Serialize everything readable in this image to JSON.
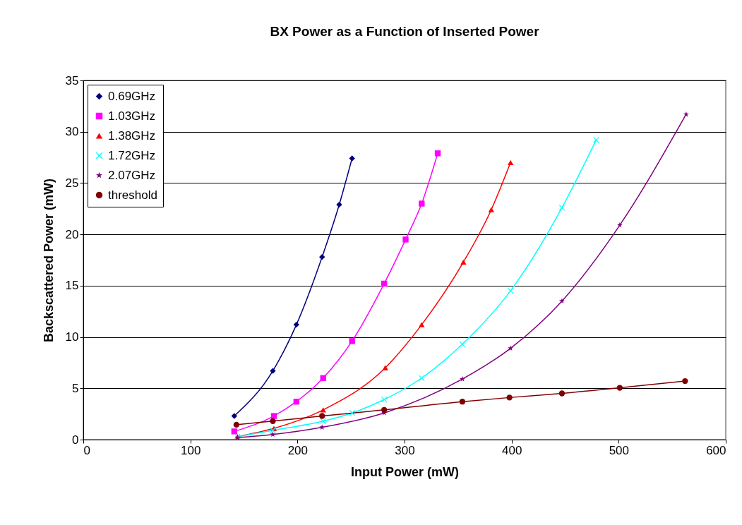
{
  "chart_data": {
    "type": "line",
    "title": "BX Power as a Function of Inserted Power",
    "xlabel": "Input Power (mW)",
    "ylabel": "Backscattered Power (mW)",
    "xlim": [
      0,
      600
    ],
    "xticks": [
      0,
      100,
      200,
      300,
      400,
      500,
      600
    ],
    "ylim": [
      0,
      35
    ],
    "yticks": [
      0,
      5,
      10,
      15,
      20,
      25,
      30,
      35
    ],
    "grid": "y",
    "legend": "top left",
    "line_style": "solid",
    "series": [
      {
        "name": "0.69GHz",
        "color": "#000080",
        "marker": "diamond",
        "x": [
          141,
          177,
          199,
          223,
          239,
          251
        ],
        "values": [
          2.3,
          6.7,
          11.2,
          17.8,
          22.9,
          27.4
        ]
      },
      {
        "name": "1.03GHz",
        "color": "#ff00ff",
        "marker": "square",
        "x": [
          141,
          178,
          199,
          224,
          251,
          281,
          301,
          316,
          331
        ],
        "values": [
          0.8,
          2.3,
          3.7,
          6.0,
          9.6,
          15.2,
          19.5,
          23.0,
          27.9
        ]
      },
      {
        "name": "1.38GHz",
        "color": "#ff0000",
        "marker": "triangle",
        "x": [
          144,
          178,
          224,
          282,
          316,
          355,
          381,
          399
        ],
        "values": [
          0.3,
          1.1,
          2.9,
          7.0,
          11.2,
          17.3,
          22.4,
          27.0
        ]
      },
      {
        "name": "1.72GHz",
        "color": "#00ffff",
        "marker": "cross",
        "x": [
          144,
          177,
          224,
          251,
          281,
          316,
          354,
          399,
          447,
          479
        ],
        "values": [
          0.3,
          0.9,
          1.8,
          2.6,
          3.9,
          6.0,
          9.3,
          14.5,
          22.6,
          29.2
        ]
      },
      {
        "name": "2.07GHz",
        "color": "#800080",
        "marker": "star",
        "x": [
          144,
          177,
          223,
          281,
          354,
          399,
          447,
          501,
          563
        ],
        "values": [
          0.2,
          0.5,
          1.2,
          2.6,
          5.9,
          8.9,
          13.5,
          20.9,
          31.7
        ]
      },
      {
        "name": "threshold",
        "color": "#800000",
        "marker": "circle",
        "x": [
          143,
          177,
          223,
          281,
          354,
          398,
          447,
          501,
          562
        ],
        "values": [
          1.45,
          1.8,
          2.3,
          2.9,
          3.7,
          4.1,
          4.5,
          5.05,
          5.7
        ]
      }
    ]
  }
}
